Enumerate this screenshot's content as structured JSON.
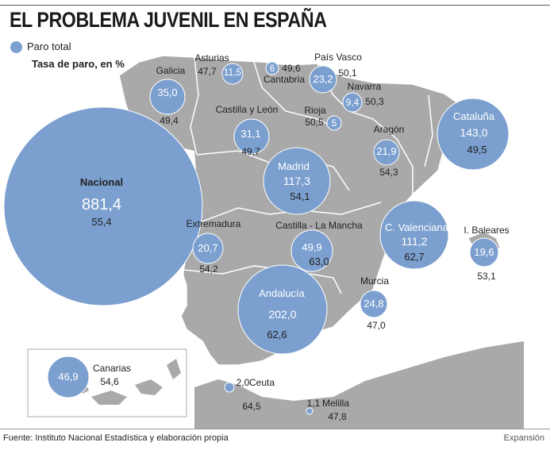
{
  "title": "EL PROBLEMA JUVENIL EN ESPAÑA",
  "legend": {
    "paro_label": "Paro total",
    "tasa_label": "Tasa de paro, en %"
  },
  "source": "Fuente: Instituto Nacional Estadística y elaboración propia",
  "credit": "Expansión",
  "colors": {
    "bubble": "#7b9fcf",
    "land": "#a9a9a9",
    "border": "#ffffff",
    "sea": "#ffffff"
  },
  "regions": [
    {
      "name": "Nacional",
      "paro": "881,4",
      "tasa": "55,4"
    },
    {
      "name": "Galicia",
      "paro": "35,0",
      "tasa": "49,4"
    },
    {
      "name": "Asturias",
      "paro": "11,5",
      "tasa": "47,7"
    },
    {
      "name": "Cantabria",
      "paro": "6",
      "tasa": "49,6"
    },
    {
      "name": "País Vasco",
      "paro": "23,2",
      "tasa": "50,1"
    },
    {
      "name": "Navarra",
      "paro": "9,4",
      "tasa": "50,3"
    },
    {
      "name": "Rioja",
      "paro": "5",
      "tasa": "50,5"
    },
    {
      "name": "Castilla y León",
      "paro": "31,1",
      "tasa": "49,7"
    },
    {
      "name": "Aragón",
      "paro": "21,9",
      "tasa": "54,3"
    },
    {
      "name": "Cataluña",
      "paro": "143,0",
      "tasa": "49,5"
    },
    {
      "name": "Madrid",
      "paro": "117,3",
      "tasa": "54,1"
    },
    {
      "name": "Extremadura",
      "paro": "20,7",
      "tasa": "54,2"
    },
    {
      "name": "Castilla - La Mancha",
      "paro": "49,9",
      "tasa": "63,0"
    },
    {
      "name": "C. Valenciana",
      "paro": "111,2",
      "tasa": "62,7"
    },
    {
      "name": "I. Baleares",
      "paro": "19,6",
      "tasa": "53,1"
    },
    {
      "name": "Murcia",
      "paro": "24,8",
      "tasa": "47,0"
    },
    {
      "name": "Andalucía",
      "paro": "202,0",
      "tasa": "62,6"
    },
    {
      "name": "Canarias",
      "paro": "46,9",
      "tasa": "54,6"
    },
    {
      "name": "Ceuta",
      "paro": "2,0",
      "tasa": "64,5"
    },
    {
      "name": "Melilla",
      "paro": "1,1",
      "tasa": "47,8"
    }
  ]
}
